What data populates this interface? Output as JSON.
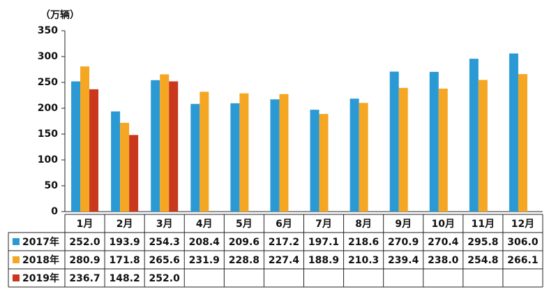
{
  "chart_data": {
    "type": "bar",
    "y_label": "（万辆）",
    "categories": [
      "1月",
      "2月",
      "3月",
      "4月",
      "5月",
      "6月",
      "7月",
      "8月",
      "9月",
      "10月",
      "11月",
      "12月"
    ],
    "series": [
      {
        "name": "2017年",
        "color": "#2b9ad4",
        "values": [
          252.0,
          193.9,
          254.3,
          208.4,
          209.6,
          217.2,
          197.1,
          218.6,
          270.9,
          270.4,
          295.8,
          306.0
        ],
        "value_labels": [
          "252.0",
          "193.9",
          "254.3",
          "208.4",
          "209.6",
          "217.2",
          "197.1",
          "218.6",
          "270.9",
          "270.4",
          "295.8",
          "306.0"
        ]
      },
      {
        "name": "2018年",
        "color": "#f5a623",
        "values": [
          280.9,
          171.8,
          265.6,
          231.9,
          228.8,
          227.4,
          188.9,
          210.3,
          239.4,
          238.0,
          254.8,
          266.1
        ],
        "value_labels": [
          "280.9",
          "171.8",
          "265.6",
          "231.9",
          "228.8",
          "227.4",
          "188.9",
          "210.3",
          "239.4",
          "238.0",
          "254.8",
          "266.1"
        ]
      },
      {
        "name": "2019年",
        "color": "#c9381d",
        "values": [
          236.7,
          148.2,
          252.0,
          null,
          null,
          null,
          null,
          null,
          null,
          null,
          null,
          null
        ],
        "value_labels": [
          "236.7",
          "148.2",
          "252.0",
          null,
          null,
          null,
          null,
          null,
          null,
          null,
          null,
          null
        ]
      }
    ],
    "ylim": [
      0,
      350
    ],
    "yticks": [
      0,
      50,
      100,
      150,
      200,
      250,
      300,
      350
    ]
  }
}
